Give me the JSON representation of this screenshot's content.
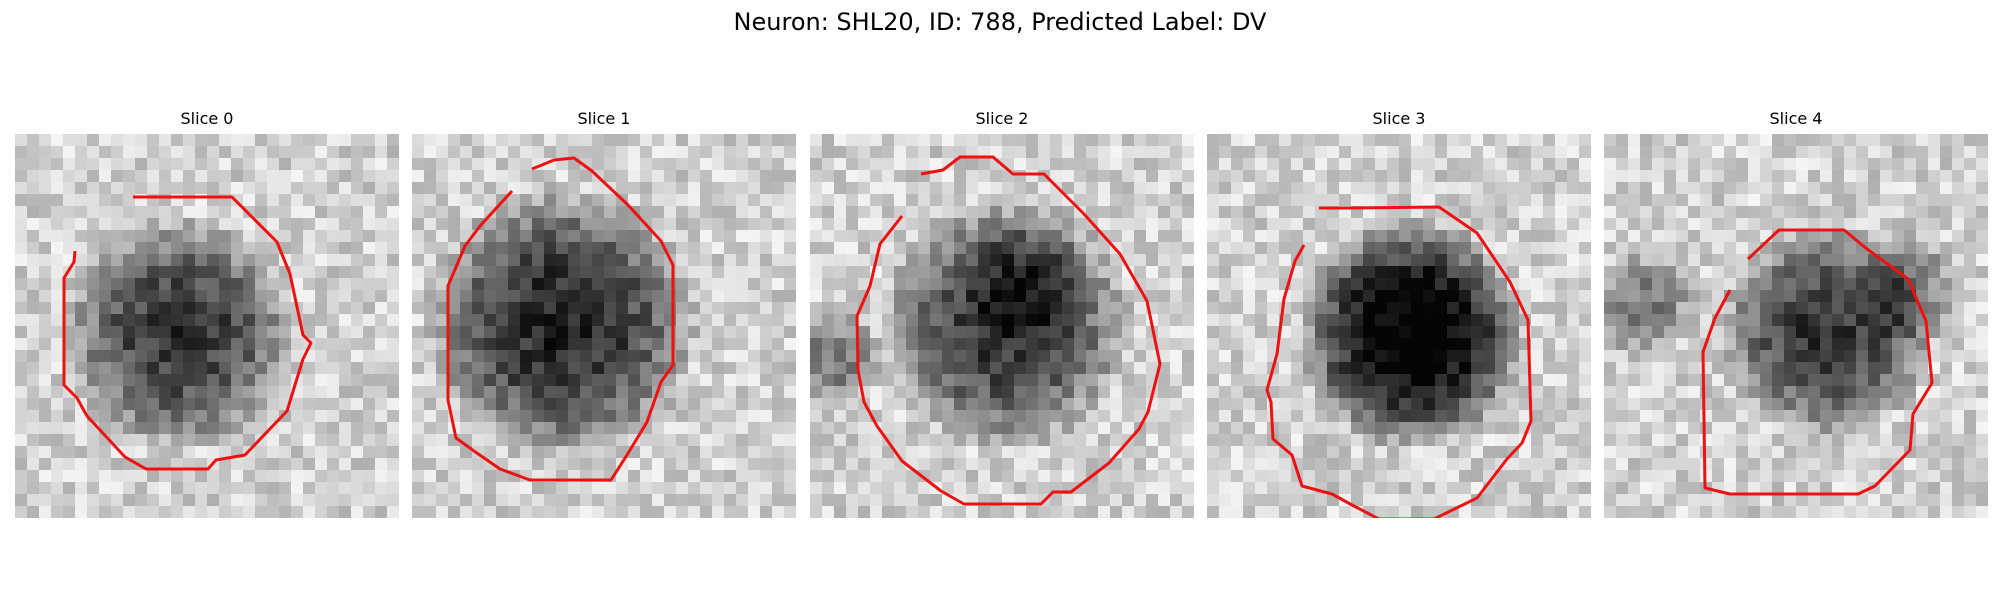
{
  "figure": {
    "title": "Neuron: SHL20, ID: 788, Predicted Label: DV"
  },
  "panels": [
    {
      "title": "Slice 0"
    },
    {
      "title": "Slice 1"
    },
    {
      "title": "Slice 2"
    },
    {
      "title": "Slice 3"
    },
    {
      "title": "Slice 4"
    }
  ],
  "colors": {
    "contour": "#ee1111",
    "background": "#ffffff"
  }
}
